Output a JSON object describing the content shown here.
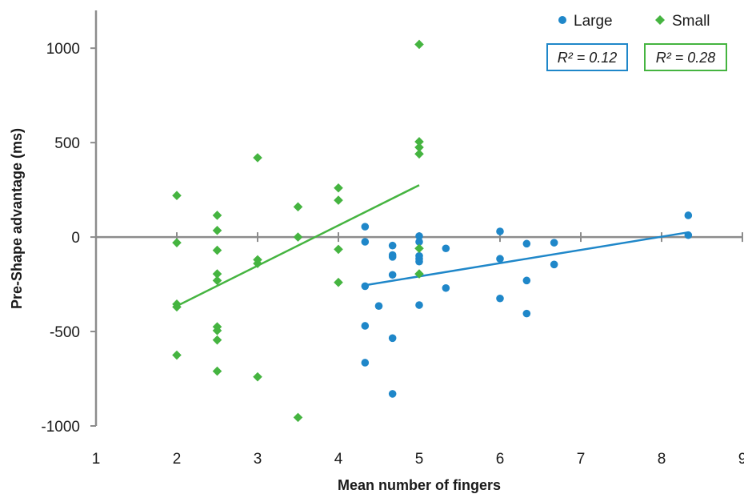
{
  "chart_data": {
    "type": "scatter",
    "xlabel": "Mean number of fingers",
    "ylabel": "Pre-Shape advantage (ms)",
    "xlim": [
      1,
      9
    ],
    "ylim": [
      -1000,
      1200
    ],
    "x_ticks": [
      1,
      2,
      3,
      4,
      5,
      6,
      7,
      8,
      9
    ],
    "y_ticks": [
      -1000,
      -500,
      0,
      500,
      1000
    ],
    "legend_position": "top-right",
    "series": [
      {
        "name": "Large",
        "marker": "circle",
        "color": "#1f87c9",
        "points": [
          [
            4.33,
            55
          ],
          [
            4.33,
            -25
          ],
          [
            4.33,
            -260
          ],
          [
            4.33,
            -470
          ],
          [
            4.33,
            -665
          ],
          [
            4.5,
            -365
          ],
          [
            4.67,
            -45
          ],
          [
            4.67,
            -95
          ],
          [
            4.67,
            -105
          ],
          [
            4.67,
            -200
          ],
          [
            4.67,
            -535
          ],
          [
            4.67,
            -830
          ],
          [
            5,
            5
          ],
          [
            5,
            -25
          ],
          [
            5,
            -100
          ],
          [
            5,
            -115
          ],
          [
            5,
            -130
          ],
          [
            5,
            -360
          ],
          [
            5.33,
            -60
          ],
          [
            5.33,
            -270
          ],
          [
            6,
            30
          ],
          [
            6,
            -115
          ],
          [
            6,
            -325
          ],
          [
            6.33,
            -35
          ],
          [
            6.33,
            -230
          ],
          [
            6.33,
            -405
          ],
          [
            6.67,
            -30
          ],
          [
            6.67,
            -145
          ],
          [
            8.33,
            115
          ],
          [
            8.33,
            10
          ]
        ],
        "trendline": {
          "x": [
            4.33,
            8.33
          ],
          "y": [
            -255,
            25
          ]
        },
        "r2_label": "R² = 0.12"
      },
      {
        "name": "Small",
        "marker": "diamond",
        "color": "#45b440",
        "points": [
          [
            2,
            220
          ],
          [
            2,
            -30
          ],
          [
            2,
            -355
          ],
          [
            2,
            -370
          ],
          [
            2,
            -625
          ],
          [
            2.5,
            115
          ],
          [
            2.5,
            35
          ],
          [
            2.5,
            -70
          ],
          [
            2.5,
            -195
          ],
          [
            2.5,
            -230
          ],
          [
            2.5,
            -475
          ],
          [
            2.5,
            -495
          ],
          [
            2.5,
            -545
          ],
          [
            2.5,
            -710
          ],
          [
            3,
            420
          ],
          [
            3,
            -120
          ],
          [
            3,
            -140
          ],
          [
            3,
            -740
          ],
          [
            3.5,
            160
          ],
          [
            3.5,
            0
          ],
          [
            3.5,
            -955
          ],
          [
            4,
            260
          ],
          [
            4,
            195
          ],
          [
            4,
            -65
          ],
          [
            4,
            -240
          ],
          [
            5,
            1020
          ],
          [
            5,
            505
          ],
          [
            5,
            475
          ],
          [
            5,
            440
          ],
          [
            5,
            -60
          ],
          [
            5,
            -195
          ]
        ],
        "trendline": {
          "x": [
            2,
            5
          ],
          "y": [
            -365,
            275
          ]
        },
        "r2_label": "R² = 0.28"
      }
    ]
  }
}
